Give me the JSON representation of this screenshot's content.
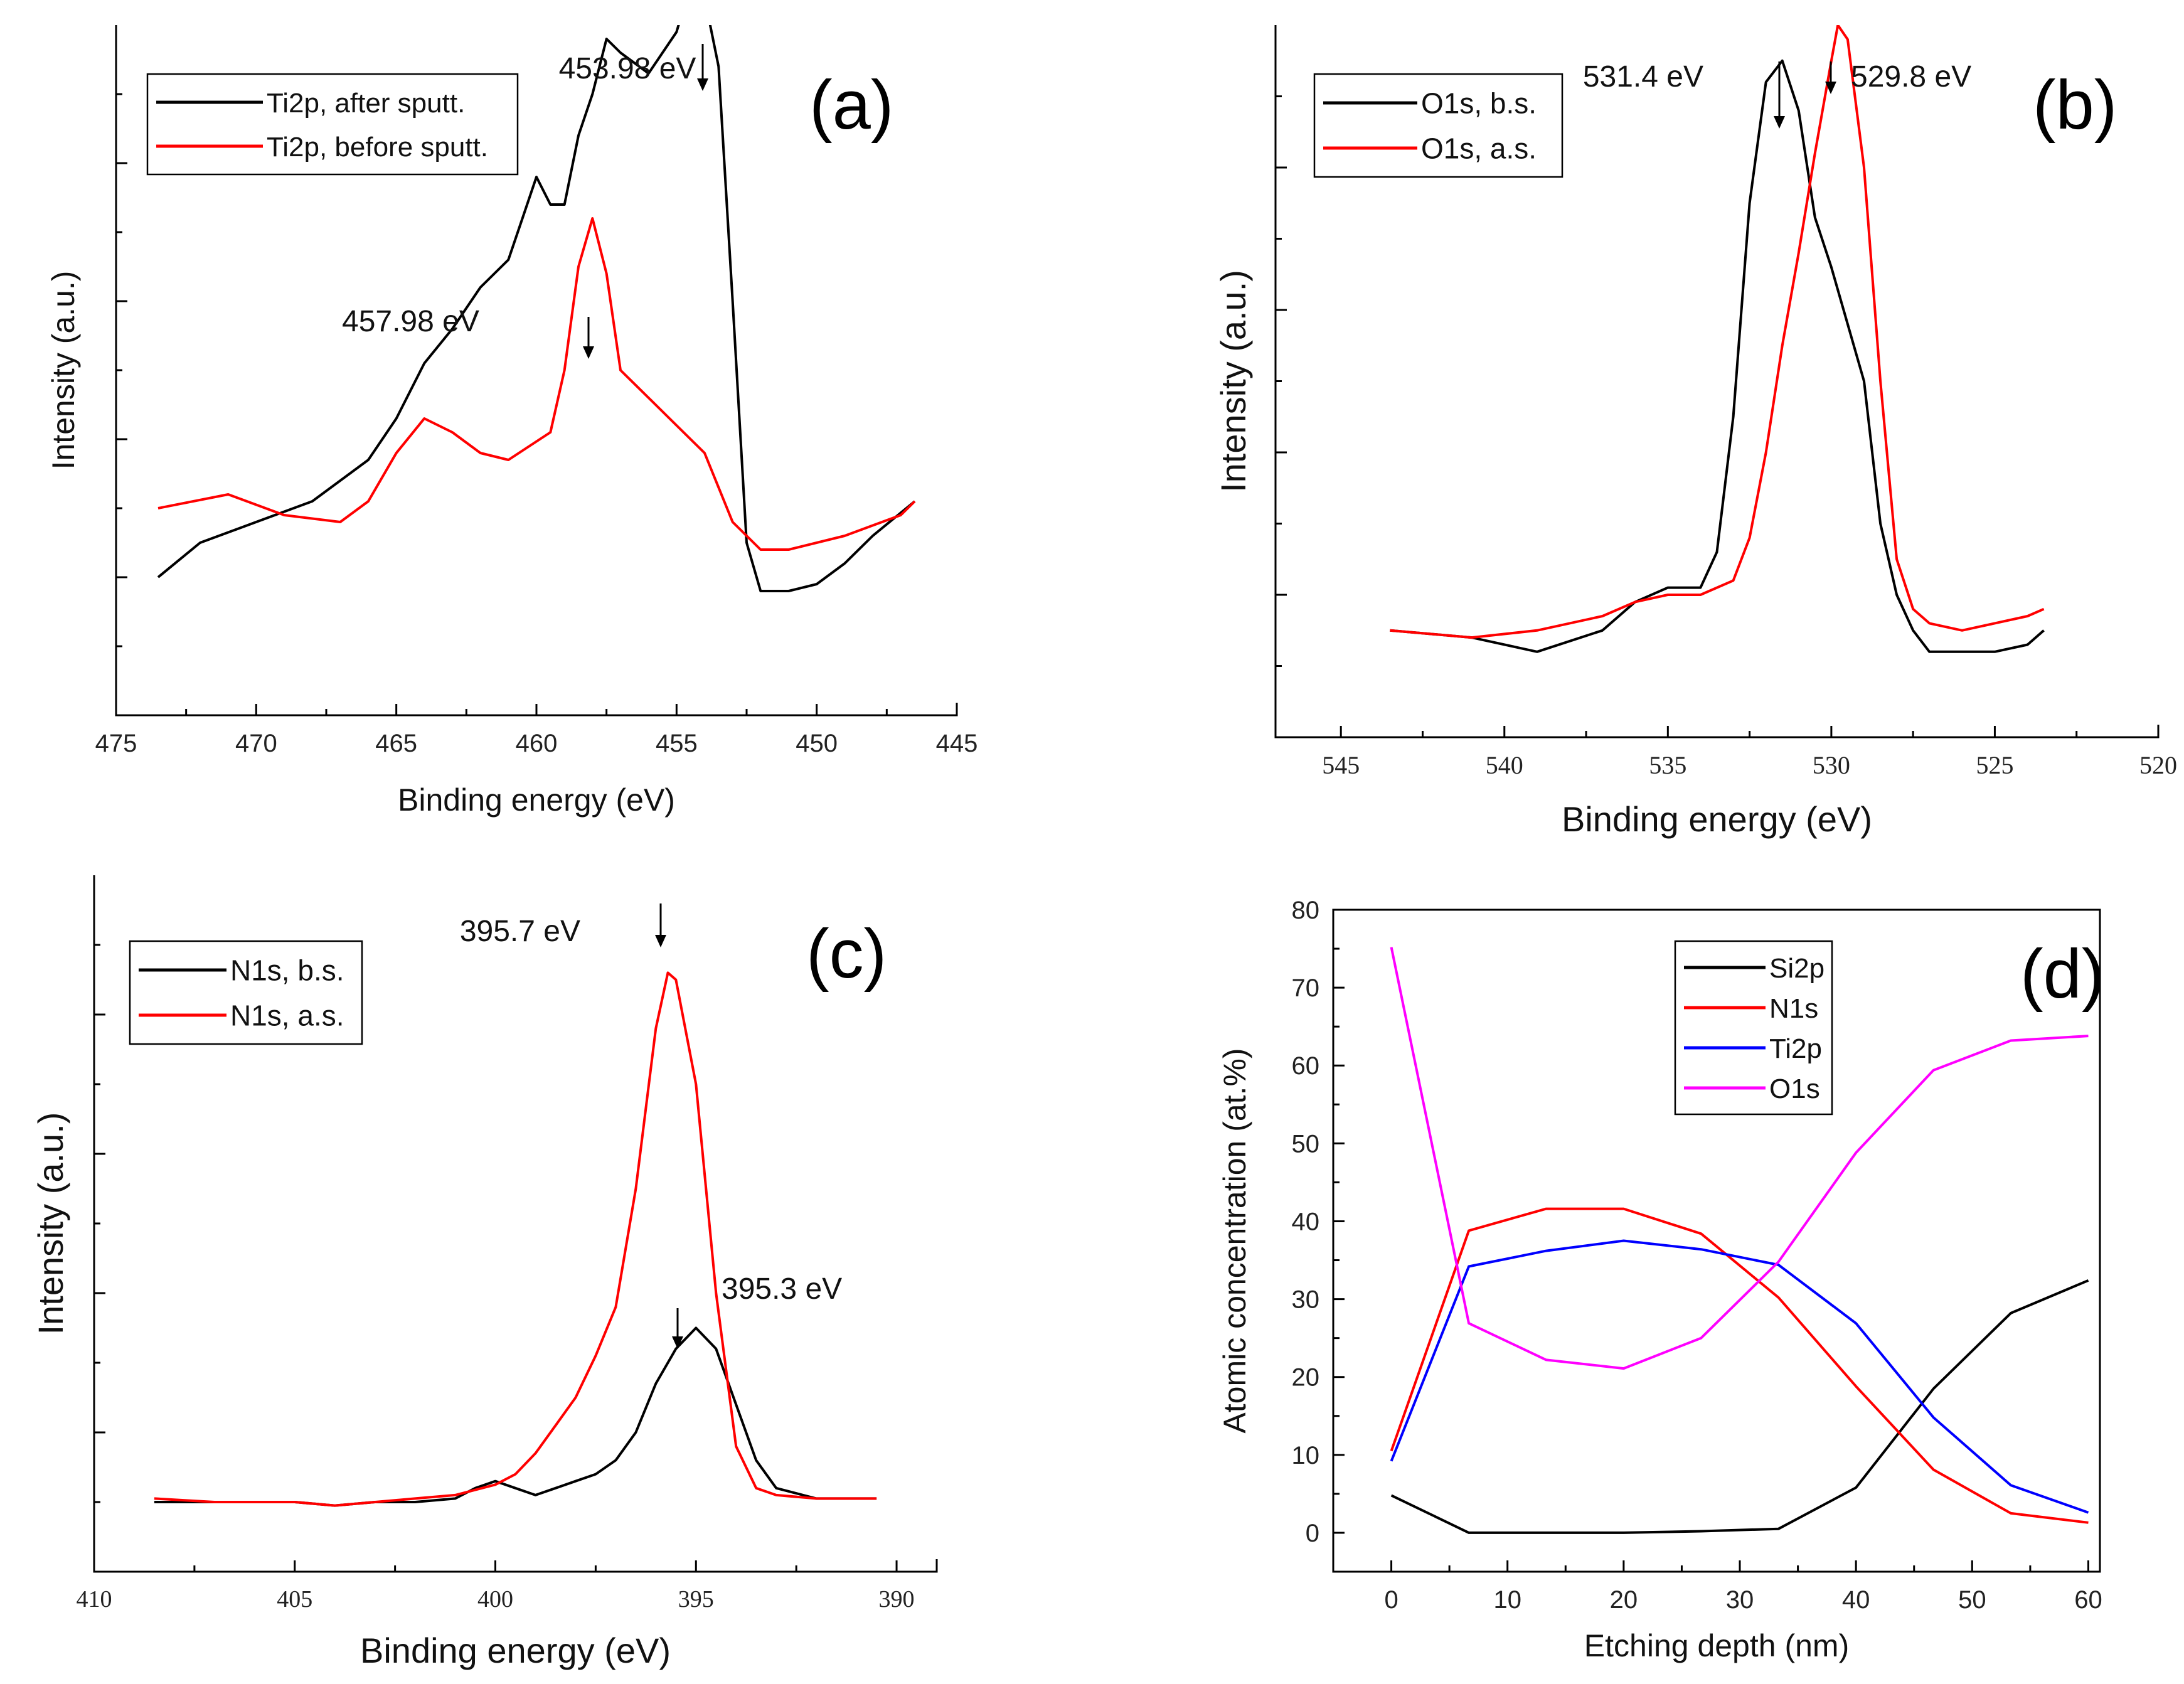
{
  "figure": {
    "background": "#ffffff"
  },
  "chart_data": [
    {
      "id": "a",
      "type": "line",
      "panel_label": "(a)",
      "title": "",
      "xlabel": "Binding energy (eV)",
      "ylabel": "Intensity (a.u.)",
      "xlim": [
        475,
        445
      ],
      "xticks": [
        475,
        470,
        465,
        460,
        455,
        450,
        445
      ],
      "ylim": [
        0,
        100
      ],
      "y_tick_labels_shown": false,
      "series": [
        {
          "name": "Ti2p, after sputt.",
          "color": "#000000",
          "x": [
            473.5,
            472,
            470,
            468,
            466,
            465,
            464,
            463,
            462,
            461,
            460.5,
            460,
            459.5,
            459,
            458.5,
            458,
            457.5,
            457,
            456,
            455,
            454.5,
            454,
            453.5,
            453,
            452.5,
            452,
            451,
            450,
            449,
            448,
            446.5
          ],
          "y": [
            20,
            25,
            28,
            31,
            37,
            43,
            51,
            56,
            62,
            66,
            72,
            78,
            74,
            74,
            84,
            90,
            98,
            96,
            93,
            99,
            106,
            104,
            94,
            60,
            25,
            18,
            18,
            19,
            22,
            26,
            31
          ]
        },
        {
          "name": "Ti2p, before sputt.",
          "color": "#ff0000",
          "x": [
            473.5,
            471,
            469,
            467,
            466,
            465,
            464,
            463,
            462,
            461,
            459.5,
            459,
            458.5,
            458,
            457.5,
            457,
            456,
            455,
            454,
            453,
            452,
            451,
            449,
            447,
            446.5
          ],
          "y": [
            30,
            32,
            29,
            28,
            31,
            38,
            43,
            41,
            38,
            37,
            41,
            50,
            65,
            72,
            64,
            50,
            46,
            42,
            38,
            28,
            24,
            24,
            26,
            29,
            31
          ]
        }
      ],
      "annotations": [
        {
          "text": "453.98 eV",
          "x": 453.98,
          "y": 104
        },
        {
          "text": "457.98 eV",
          "x": 457.98,
          "y": 72
        }
      ]
    },
    {
      "id": "b",
      "type": "line",
      "panel_label": "(b)",
      "title": "",
      "xlabel": "Binding energy (eV)",
      "ylabel": "Intensity (a.u.)",
      "xlim": [
        547,
        520
      ],
      "xticks": [
        545,
        540,
        535,
        530,
        525,
        520
      ],
      "ylim": [
        0,
        100
      ],
      "y_tick_labels_shown": false,
      "series": [
        {
          "name": "O1s, b.s.",
          "color": "#000000",
          "x": [
            543.5,
            541,
            539,
            537,
            536,
            535,
            534,
            533.5,
            533,
            532.5,
            532,
            531.5,
            531,
            530.5,
            530,
            529,
            528.5,
            528,
            527.5,
            527,
            526,
            525,
            524,
            523.5
          ],
          "y": [
            15,
            14,
            12,
            15,
            19,
            21,
            21,
            26,
            45,
            75,
            92,
            95,
            88,
            73,
            66,
            50,
            30,
            20,
            15,
            12,
            12,
            12,
            13,
            15
          ]
        },
        {
          "name": "O1s, a.s.",
          "color": "#ff0000",
          "x": [
            543.5,
            541,
            539,
            537,
            536,
            535,
            534,
            533,
            532.5,
            532,
            531.5,
            531,
            530.5,
            530,
            529.8,
            529.5,
            529,
            528.5,
            528,
            527.5,
            527,
            526,
            525,
            524,
            523.5
          ],
          "y": [
            15,
            14,
            15,
            17,
            19,
            20,
            20,
            22,
            28,
            40,
            55,
            68,
            82,
            95,
            100,
            98,
            80,
            50,
            25,
            18,
            16,
            15,
            16,
            17,
            18
          ]
        }
      ],
      "annotations": [
        {
          "text": "531.4 eV",
          "x": 531.4,
          "y": 95
        },
        {
          "text": "529.8 eV",
          "x": 529.8,
          "y": 100
        }
      ]
    },
    {
      "id": "c",
      "type": "line",
      "panel_label": "(c)",
      "title": "",
      "xlabel": "Binding energy (eV)",
      "ylabel": "Intensity (a.u.)",
      "xlim": [
        410,
        389
      ],
      "xticks": [
        410,
        405,
        400,
        395,
        390
      ],
      "ylim": [
        0,
        100
      ],
      "y_tick_labels_shown": false,
      "series": [
        {
          "name": "N1s, b.s.",
          "color": "#000000",
          "x": [
            408.5,
            407,
            405,
            404,
            403,
            402,
            401,
            400.5,
            400,
            399.5,
            399,
            398.5,
            398,
            397.5,
            397,
            396.5,
            396,
            395.5,
            395,
            394.5,
            394,
            393.5,
            393,
            392,
            391,
            390.5
          ],
          "y": [
            10,
            10,
            10,
            9.5,
            10,
            10,
            10.5,
            12,
            13,
            12,
            11,
            12,
            13,
            14,
            16,
            20,
            27,
            32,
            35,
            32,
            24,
            16,
            12,
            10.5,
            10.5,
            10.5
          ]
        },
        {
          "name": "N1s, a.s.",
          "color": "#ff0000",
          "x": [
            408.5,
            407,
            405,
            404,
            403,
            402,
            401,
            400,
            399.5,
            399,
            398.5,
            398,
            397.5,
            397,
            396.5,
            396,
            395.7,
            395.5,
            395,
            394.5,
            394,
            393.5,
            393,
            392,
            391,
            390.5
          ],
          "y": [
            10.5,
            10,
            10,
            9.5,
            10,
            10.5,
            11,
            12.5,
            14,
            17,
            21,
            25,
            31,
            38,
            55,
            78,
            86,
            85,
            70,
            40,
            18,
            12,
            11,
            10.5,
            10.5,
            10.5
          ]
        }
      ],
      "annotations": [
        {
          "text": "395.7 eV",
          "x": 395.7,
          "y": 86
        },
        {
          "text": "395.3 eV",
          "x": 395.3,
          "y": 35
        }
      ]
    },
    {
      "id": "d",
      "type": "line",
      "panel_label": "(d)",
      "title": "",
      "xlabel": "Etching depth (nm)",
      "ylabel": "Atomic concentration (at.%)",
      "xlim": [
        -5,
        61
      ],
      "xticks": [
        0,
        10,
        20,
        30,
        40,
        50,
        60
      ],
      "ylim": [
        -5,
        80
      ],
      "yticks": [
        0,
        10,
        20,
        30,
        40,
        50,
        60,
        70,
        80
      ],
      "y_tick_labels_shown": true,
      "series": [
        {
          "name": "Si2p",
          "color": "#000000",
          "x": [
            0,
            6.67,
            13.33,
            20,
            26.67,
            33.33,
            40,
            46.67,
            53.33,
            60
          ],
          "y": [
            4.8,
            0,
            0,
            0,
            0.2,
            0.5,
            5.8,
            18.5,
            28.2,
            32.4
          ]
        },
        {
          "name": "N1s",
          "color": "#ff0000",
          "x": [
            0,
            6.67,
            13.33,
            20,
            26.67,
            33.33,
            40,
            46.67,
            53.33,
            60
          ],
          "y": [
            10.5,
            38.8,
            41.6,
            41.6,
            38.4,
            30.2,
            18.8,
            8.1,
            2.5,
            1.3
          ]
        },
        {
          "name": "Ti2p",
          "color": "#0000ff",
          "x": [
            0,
            6.67,
            13.33,
            20,
            26.67,
            33.33,
            40,
            46.67,
            53.33,
            60
          ],
          "y": [
            9.2,
            34.2,
            36.2,
            37.5,
            36.4,
            34.4,
            26.9,
            14.8,
            6.1,
            2.6
          ]
        },
        {
          "name": "O1s",
          "color": "#ff00ff",
          "x": [
            0,
            6.67,
            13.33,
            20,
            26.67,
            33.33,
            40,
            46.67,
            53.33,
            60
          ],
          "y": [
            75.2,
            26.9,
            22.2,
            21.1,
            25.0,
            34.8,
            48.8,
            59.4,
            63.2,
            63.8
          ]
        }
      ],
      "annotations": []
    }
  ]
}
